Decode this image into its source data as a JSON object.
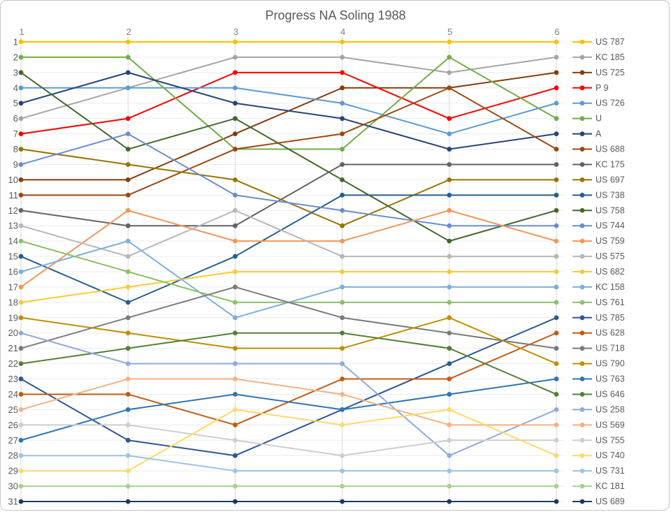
{
  "title": "Progress NA Soling 1988",
  "chart_data": {
    "type": "line",
    "subtype": "bump-chart-rank-progression",
    "title": "Progress NA Soling 1988",
    "xlabel": "",
    "ylabel": "",
    "x_ticks": [
      "1",
      "2",
      "3",
      "4",
      "5",
      "6"
    ],
    "x_ticks_position": "top",
    "y_ticks": [
      "1",
      "2",
      "3",
      "4",
      "5",
      "6",
      "7",
      "8",
      "9",
      "10",
      "11",
      "12",
      "13",
      "14",
      "15",
      "16",
      "17",
      "18",
      "19",
      "20",
      "21",
      "22",
      "23",
      "24",
      "25",
      "26",
      "27",
      "28",
      "29",
      "30",
      "31"
    ],
    "ylim": [
      1,
      31
    ],
    "y_inverted": true,
    "grid": "horizontal-light-and-vertical-column-lines",
    "legend_position": "right",
    "marker": "circle",
    "series": [
      {
        "name": "US 787",
        "color": "#FFC000",
        "ranks": [
          1,
          1,
          1,
          1,
          1,
          1
        ]
      },
      {
        "name": "KC 185",
        "color": "#A5A5A5",
        "ranks": [
          6,
          4,
          2,
          2,
          3,
          2
        ]
      },
      {
        "name": "US 725",
        "color": "#843C0C",
        "ranks": [
          10,
          10,
          7,
          4,
          4,
          3
        ]
      },
      {
        "name": "P 9",
        "color": "#FF0000",
        "ranks": [
          7,
          6,
          3,
          3,
          6,
          4
        ]
      },
      {
        "name": "US 726",
        "color": "#5B9BD5",
        "ranks": [
          4,
          4,
          4,
          5,
          7,
          5
        ]
      },
      {
        "name": "U",
        "color": "#70AD47",
        "ranks": [
          2,
          2,
          8,
          8,
          2,
          6
        ]
      },
      {
        "name": "A",
        "color": "#264478",
        "ranks": [
          5,
          3,
          5,
          6,
          8,
          7
        ]
      },
      {
        "name": "US 688",
        "color": "#9E480E",
        "ranks": [
          11,
          11,
          8,
          7,
          4,
          8
        ]
      },
      {
        "name": "KC 175",
        "color": "#636363",
        "ranks": [
          12,
          13,
          13,
          9,
          9,
          9
        ]
      },
      {
        "name": "US 697",
        "color": "#997300",
        "ranks": [
          8,
          9,
          10,
          13,
          10,
          10
        ]
      },
      {
        "name": "US 738",
        "color": "#255E91",
        "ranks": [
          15,
          18,
          15,
          11,
          11,
          11
        ]
      },
      {
        "name": "US 758",
        "color": "#43682B",
        "ranks": [
          3,
          8,
          6,
          10,
          14,
          12
        ]
      },
      {
        "name": "US 744",
        "color": "#698ED0",
        "ranks": [
          9,
          7,
          11,
          12,
          13,
          13
        ]
      },
      {
        "name": "US 759",
        "color": "#F1975A",
        "ranks": [
          17,
          12,
          14,
          14,
          12,
          14
        ]
      },
      {
        "name": "US 575",
        "color": "#B7B7B7",
        "ranks": [
          13,
          15,
          12,
          15,
          15,
          15
        ]
      },
      {
        "name": "US 682",
        "color": "#FFC933",
        "ranks": [
          18,
          17,
          16,
          16,
          16,
          16
        ]
      },
      {
        "name": "KC 158",
        "color": "#7CAFDD",
        "ranks": [
          16,
          14,
          19,
          17,
          17,
          17
        ]
      },
      {
        "name": "US 761",
        "color": "#8CC168",
        "ranks": [
          14,
          16,
          18,
          18,
          18,
          18
        ]
      },
      {
        "name": "US 785",
        "color": "#2E5697",
        "ranks": [
          23,
          27,
          28,
          25,
          22,
          19
        ]
      },
      {
        "name": "US 628",
        "color": "#C55A11",
        "ranks": [
          24,
          24,
          26,
          23,
          23,
          20
        ]
      },
      {
        "name": "US 718",
        "color": "#7B7B7B",
        "ranks": [
          21,
          19,
          17,
          19,
          20,
          21
        ]
      },
      {
        "name": "US 790",
        "color": "#BF8F00",
        "ranks": [
          19,
          20,
          21,
          21,
          19,
          22
        ]
      },
      {
        "name": "US 763",
        "color": "#2E75B6",
        "ranks": [
          27,
          25,
          24,
          25,
          24,
          23
        ]
      },
      {
        "name": "US 646",
        "color": "#538135",
        "ranks": [
          22,
          21,
          20,
          20,
          21,
          24
        ]
      },
      {
        "name": "US 258",
        "color": "#8FAADC",
        "ranks": [
          20,
          22,
          22,
          22,
          28,
          25
        ]
      },
      {
        "name": "US 569",
        "color": "#F4B183",
        "ranks": [
          25,
          23,
          23,
          24,
          26,
          26
        ]
      },
      {
        "name": "US 755",
        "color": "#CFCDCD",
        "ranks": [
          26,
          26,
          27,
          28,
          27,
          27
        ]
      },
      {
        "name": "US 740",
        "color": "#FFD966",
        "ranks": [
          29,
          29,
          25,
          26,
          25,
          28
        ]
      },
      {
        "name": "US 731",
        "color": "#9DC3E6",
        "ranks": [
          28,
          28,
          29,
          29,
          29,
          29
        ]
      },
      {
        "name": "KC 181",
        "color": "#A9D18E",
        "ranks": [
          30,
          30,
          30,
          30,
          30,
          30
        ]
      },
      {
        "name": "US 689",
        "color": "#1F3864",
        "ranks": [
          31,
          31,
          31,
          31,
          31,
          31
        ]
      }
    ]
  },
  "style_colors": {
    "horizontal_gridline": "#ECECEC",
    "vertical_gridline": "#D9D9D9",
    "title_text": "#595959",
    "x_tick_text": "#808080",
    "y_tick_text": "#595959",
    "legend_text": "#595959",
    "border": "#C6C6C6"
  }
}
